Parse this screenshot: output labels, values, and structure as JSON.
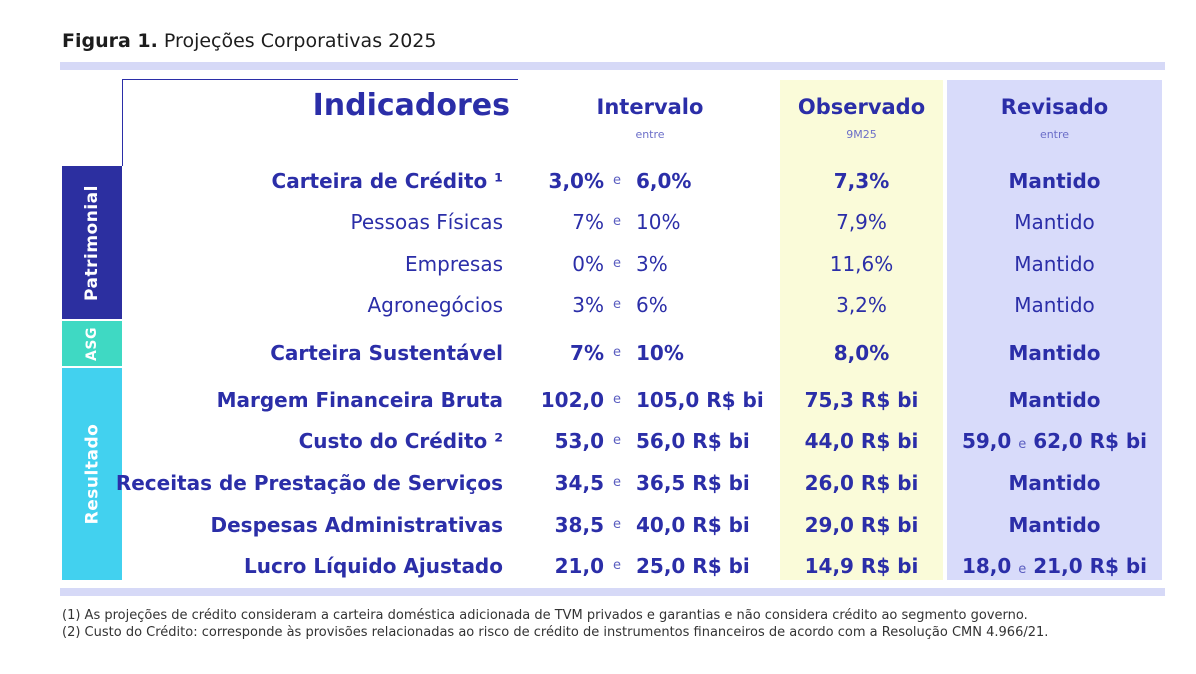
{
  "figure": {
    "label": "Figura 1.",
    "title": "Projeções Corporativas 2025"
  },
  "headers": {
    "indicadores": "Indicadores",
    "intervalo": "Intervalo",
    "intervalo_sub": "entre",
    "observado": "Observado",
    "observado_sub": "9M25",
    "revisado": "Revisado",
    "revisado_sub": "entre"
  },
  "groups": {
    "patrimonial": "Patrimonial",
    "asg": "ASG",
    "resultado": "Resultado"
  },
  "connector": "e",
  "rows": [
    {
      "label": "Carteira de Crédito ¹",
      "low": "3,0%",
      "high": "6,0%",
      "observado": "7,3%",
      "revisado": "Mantido"
    },
    {
      "label": "Pessoas Físicas",
      "low": "7%",
      "high": "10%",
      "observado": "7,9%",
      "revisado": "Mantido"
    },
    {
      "label": "Empresas",
      "low": "0%",
      "high": "3%",
      "observado": "11,6%",
      "revisado": "Mantido"
    },
    {
      "label": "Agronegócios",
      "low": "3%",
      "high": "6%",
      "observado": "3,2%",
      "revisado": "Mantido"
    },
    {
      "label": "Carteira Sustentável",
      "low": "7%",
      "high": "10%",
      "observado": "8,0%",
      "revisado": "Mantido"
    },
    {
      "label": "Margem Financeira Bruta",
      "low": "102,0",
      "high": "105,0 R$ bi",
      "observado": "75,3 R$ bi",
      "revisado": "Mantido"
    },
    {
      "label": "Custo do Crédito ²",
      "low": "53,0",
      "high": "56,0 R$ bi",
      "observado": "44,0 R$ bi",
      "revisado_low": "59,0",
      "revisado_high": "62,0 R$ bi"
    },
    {
      "label": "Receitas de Prestação de Serviços",
      "low": "34,5",
      "high": "36,5 R$ bi",
      "observado": "26,0 R$ bi",
      "revisado": "Mantido"
    },
    {
      "label": "Despesas Administrativas",
      "low": "38,5",
      "high": "40,0 R$ bi",
      "observado": "29,0 R$ bi",
      "revisado": "Mantido"
    },
    {
      "label": "Lucro Líquido Ajustado",
      "low": "21,0",
      "high": "25,0 R$ bi",
      "observado": "14,9 R$ bi",
      "revisado_low": "18,0",
      "revisado_high": "21,0 R$ bi"
    }
  ],
  "footnotes": [
    "(1) As projeções de crédito consideram a carteira doméstica adicionada de TVM privados e garantias e não considera crédito ao segmento governo.",
    "(2) Custo do Crédito: corresponde às provisões relacionadas ao risco de crédito de instrumentos financeiros de acordo com a Resolução CMN 4.966/21."
  ]
}
